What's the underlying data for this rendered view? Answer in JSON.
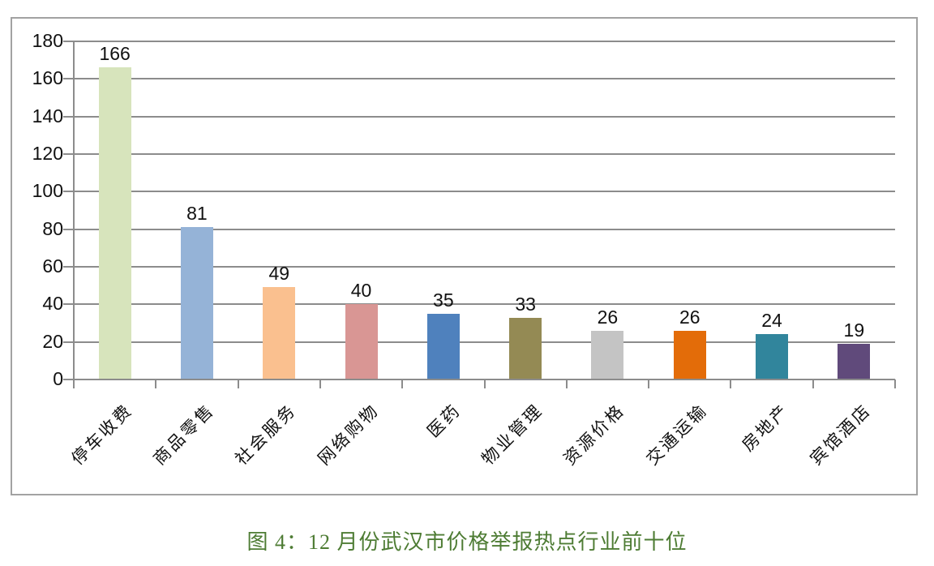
{
  "chart_data": {
    "type": "bar",
    "title": "图 4：12 月份武汉市价格举报热点行业前十位",
    "xlabel": "",
    "ylabel": "",
    "categories": [
      "停车收费",
      "商品零售",
      "社会服务",
      "网络购物",
      "医药",
      "物业管理",
      "资源价格",
      "交通运输",
      "房地产",
      "宾馆酒店"
    ],
    "values": [
      166,
      81,
      49,
      40,
      35,
      33,
      26,
      26,
      24,
      19
    ],
    "bar_colors": [
      "#d7e4bc",
      "#95b3d7",
      "#fac08f",
      "#d99694",
      "#4f81bd",
      "#948a54",
      "#c4c4c4",
      "#e36c09",
      "#31859c",
      "#604a7b"
    ],
    "ylim": [
      0,
      180
    ],
    "ytick_step": 20,
    "yticks": [
      0,
      20,
      40,
      60,
      80,
      100,
      120,
      140,
      160,
      180
    ],
    "grid": true,
    "legend": false,
    "data_labels": true,
    "category_label_rotation": 45
  },
  "style": {
    "gridline_color": "#8c8c8c",
    "axis_color": "#8c8c8c",
    "frame_border_color": "#a2a2a2",
    "caption_color": "#4e7c34",
    "tick_label_color": "#111111"
  }
}
